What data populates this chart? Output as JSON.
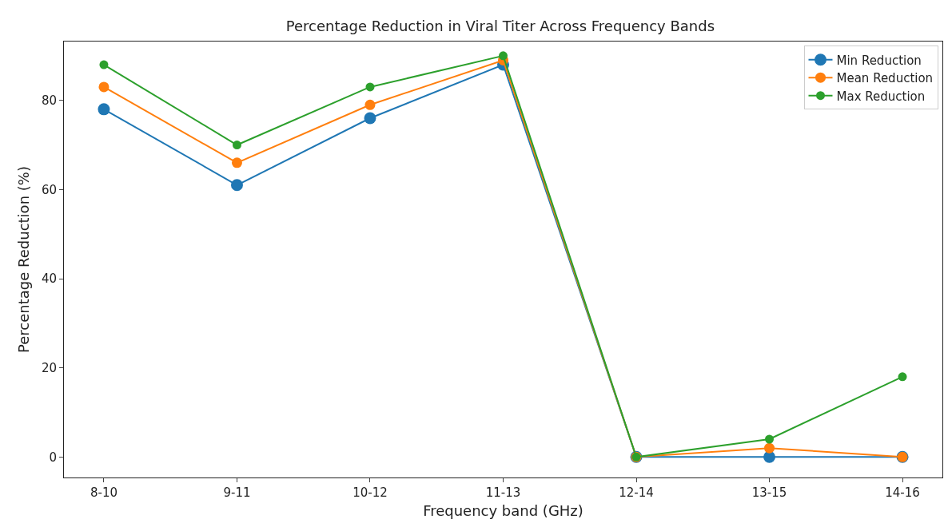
{
  "chart_data": {
    "type": "line",
    "title": "Percentage Reduction in Viral Titer Across Frequency Bands",
    "xlabel": "Frequency band (GHz)",
    "ylabel": "Percentage Reduction (%)",
    "categories": [
      "8-10",
      "9-11",
      "10-12",
      "11-13",
      "12-14",
      "13-15",
      "14-16"
    ],
    "series": [
      {
        "name": "Min Reduction",
        "color": "#1f77b4",
        "values": [
          78,
          61,
          76,
          88,
          0,
          0,
          0
        ]
      },
      {
        "name": "Mean Reduction",
        "color": "#ff7f0e",
        "values": [
          83,
          66,
          79,
          89,
          0,
          2,
          0
        ]
      },
      {
        "name": "Max Reduction",
        "color": "#2ca02c",
        "values": [
          88,
          70,
          83,
          90,
          0,
          4,
          18
        ]
      }
    ],
    "ylim": [
      -4.6,
      93.2
    ],
    "yticks": [
      0,
      20,
      40,
      60,
      80
    ],
    "grid": false,
    "legend": "top right",
    "marker": "circle",
    "line_style": "solid"
  }
}
